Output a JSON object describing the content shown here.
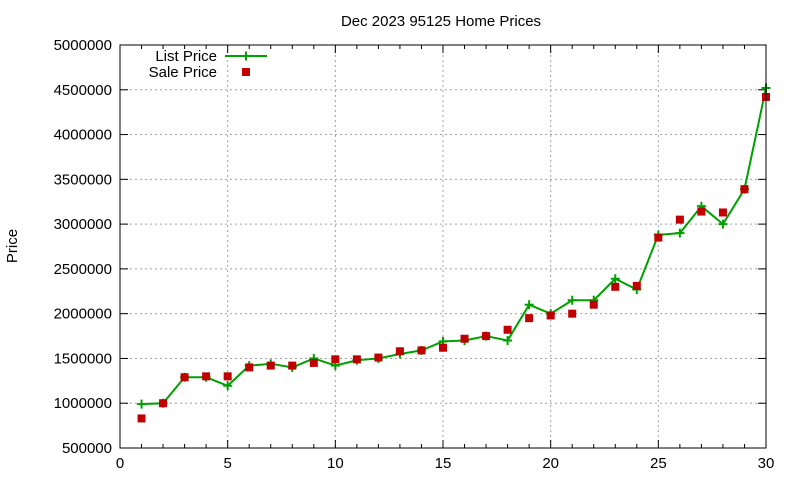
{
  "chart_data": {
    "type": "line",
    "title": "Dec 2023 95125 Home Prices",
    "xlabel": "",
    "ylabel": "Price",
    "xlim": [
      0,
      30
    ],
    "ylim": [
      500000,
      5000000
    ],
    "x_ticks": [
      "0",
      "5",
      "10",
      "15",
      "20",
      "25",
      "30"
    ],
    "y_ticks": [
      "500000",
      "1000000",
      "1500000",
      "2000000",
      "2500000",
      "3000000",
      "3500000",
      "4000000",
      "4500000",
      "5000000"
    ],
    "grid": true,
    "legend_position": "top-left",
    "series": [
      {
        "name": "List Price",
        "style": "line-with-plus-markers",
        "color": "#00a000",
        "x": [
          1,
          2,
          3,
          4,
          5,
          6,
          7,
          8,
          9,
          10,
          11,
          12,
          13,
          14,
          15,
          16,
          17,
          18,
          19,
          20,
          21,
          22,
          23,
          24,
          25,
          26,
          27,
          28,
          29,
          30
        ],
        "values": [
          990000,
          1000000,
          1290000,
          1290000,
          1195000,
          1420000,
          1440000,
          1400000,
          1500000,
          1420000,
          1480000,
          1500000,
          1550000,
          1590000,
          1690000,
          1700000,
          1750000,
          1700000,
          2100000,
          2000000,
          2150000,
          2150000,
          2390000,
          2270000,
          2880000,
          2900000,
          3200000,
          3000000,
          3390000,
          4520000
        ]
      },
      {
        "name": "Sale Price",
        "style": "square-markers",
        "color": "#c00000",
        "x": [
          1,
          2,
          3,
          4,
          5,
          6,
          7,
          8,
          9,
          10,
          11,
          12,
          13,
          14,
          15,
          16,
          17,
          18,
          19,
          20,
          21,
          22,
          23,
          24,
          25,
          26,
          27,
          28,
          29,
          30
        ],
        "values": [
          830000,
          1000000,
          1290000,
          1300000,
          1300000,
          1400000,
          1420000,
          1420000,
          1450000,
          1490000,
          1490000,
          1510000,
          1580000,
          1590000,
          1620000,
          1720000,
          1750000,
          1820000,
          1950000,
          1980000,
          2000000,
          2100000,
          2300000,
          2310000,
          2850000,
          3050000,
          3140000,
          3130000,
          3390000,
          4420000
        ]
      }
    ]
  }
}
